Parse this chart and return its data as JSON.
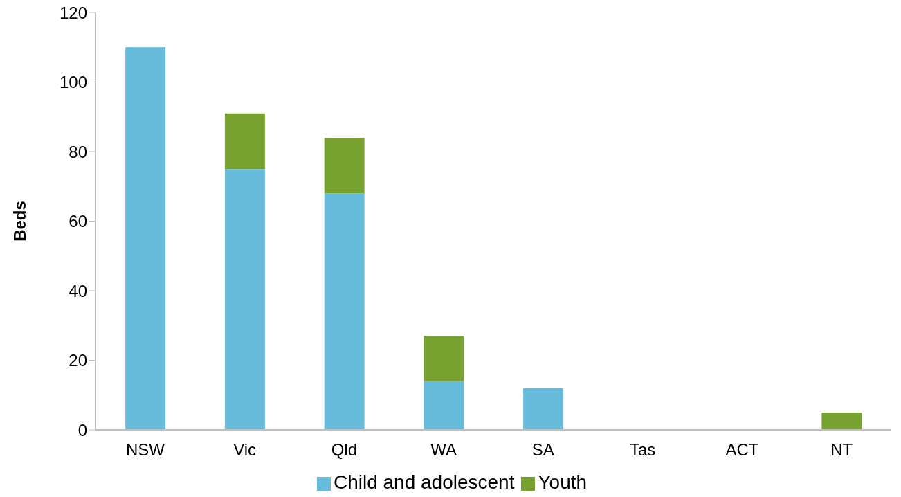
{
  "chart_data": {
    "type": "bar",
    "stacked": true,
    "ylabel": "Beds",
    "categories": [
      "NSW",
      "Vic",
      "Qld",
      "WA",
      "SA",
      "Tas",
      "ACT",
      "NT"
    ],
    "series": [
      {
        "name": "Child and adolescent",
        "color": "#67bbdb",
        "values": [
          110,
          75,
          68,
          14,
          12,
          0,
          0,
          0
        ]
      },
      {
        "name": "Youth",
        "color": "#78a22f",
        "values": [
          0,
          16,
          16,
          13,
          0,
          0,
          0,
          5
        ]
      }
    ],
    "ylim": [
      0,
      120
    ],
    "yticks": [
      0,
      20,
      40,
      60,
      80,
      100,
      120
    ],
    "grid": false,
    "legend": "bottom"
  }
}
